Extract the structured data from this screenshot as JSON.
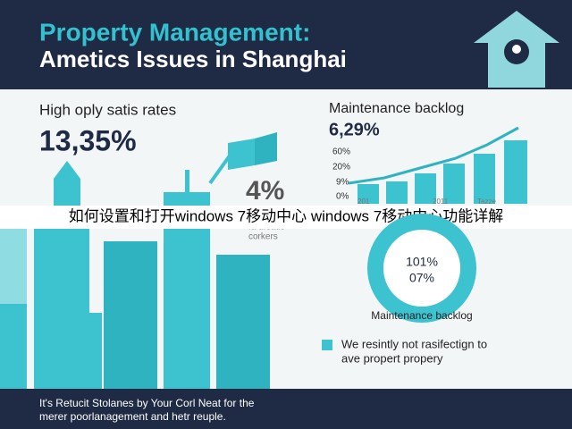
{
  "header": {
    "title_line1": "Property Management:",
    "title_line2": "Ametics Issues in Shanghai"
  },
  "left_panel": {
    "label": "High oply satis rates",
    "value": "13,35%"
  },
  "right_panel": {
    "label": "Maintenance backlog",
    "value": "6,29%",
    "axis_labels": [
      "60%",
      "20%",
      "9%",
      "0%"
    ],
    "x_labels": [
      "201",
      "2011",
      "Tazze"
    ]
  },
  "center_stat": {
    "value": "4%",
    "caption_line1": "fa drsatis",
    "caption_line2": "corkers"
  },
  "banner": "如何设置和打开windows 7移动中心 windows 7移动中心功能详解",
  "donut": {
    "line1": "101%",
    "line2": "07%",
    "caption": "Maintenance backlog"
  },
  "legend": {
    "line1": "We resintly not rasifectign to",
    "line2": "ave propert propery"
  },
  "footer": {
    "line1": "It's Retucit Stolanes by Your Corl Neat for the",
    "line2": "merer poorlanagement and hetr reuple."
  }
}
